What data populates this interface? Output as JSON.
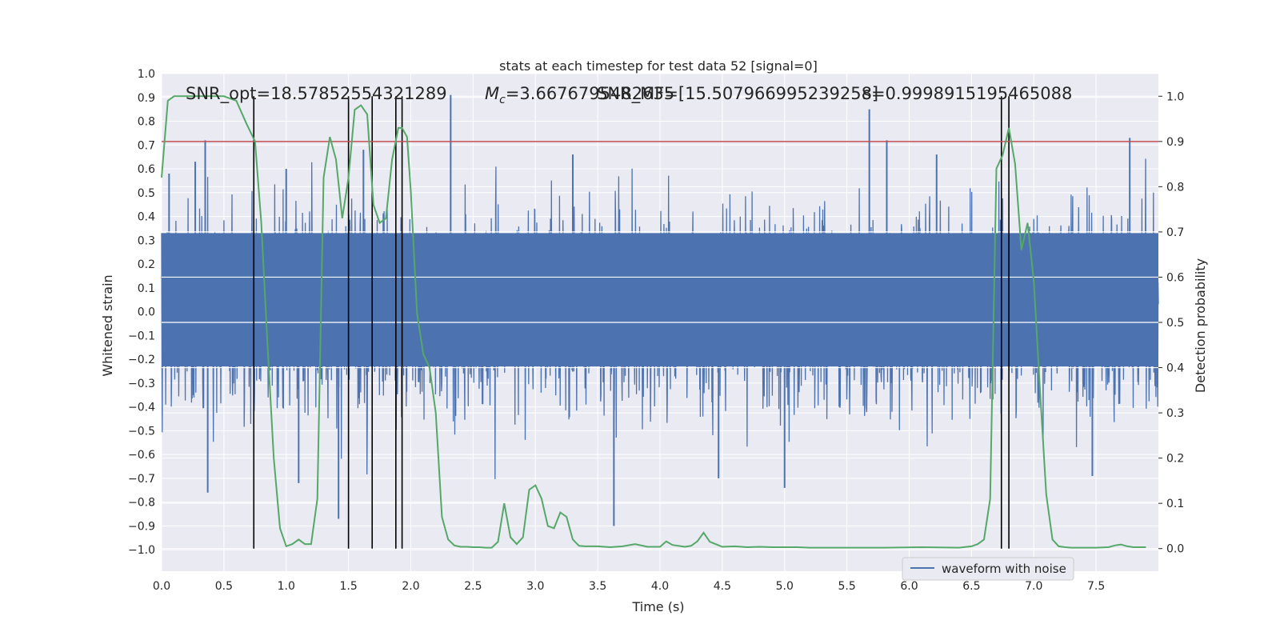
{
  "chart_data": {
    "type": "line",
    "title": "stats at each timestep for test data 52 [signal=0]",
    "annotations": {
      "snr_opt": "SNR_opt=18.57852554321289",
      "mc": "=3.6676795482635",
      "mc_symbol": "M",
      "mc_subscript": "c",
      "snr_mf": "SNR_MF=[15.507966995239258]",
      "s": "s=0.9998915195465088"
    },
    "xlabel": "Time (s)",
    "ylabel": "Whitened strain",
    "y2label": "Detection probability",
    "xlim": [
      0,
      8.0
    ],
    "ylim": [
      -1.09,
      1.0
    ],
    "y2lim": [
      -0.05,
      1.05
    ],
    "xticks": [
      "0.0",
      "0.5",
      "1.0",
      "1.5",
      "2.0",
      "2.5",
      "3.0",
      "3.5",
      "4.0",
      "4.5",
      "5.0",
      "5.5",
      "6.0",
      "6.5",
      "7.0",
      "7.5"
    ],
    "yticks": [
      "1.0",
      "0.9",
      "0.8",
      "0.7",
      "0.6",
      "0.5",
      "0.4",
      "0.3",
      "0.2",
      "0.1",
      "0.0",
      "-0.1",
      "-0.2",
      "-0.3",
      "-0.4",
      "-0.5",
      "-0.6",
      "-0.7",
      "-0.8",
      "-0.9",
      "-1.0"
    ],
    "y2ticks": [
      "0.0",
      "0.1",
      "0.2",
      "0.3",
      "0.4",
      "0.5",
      "0.6",
      "0.7",
      "0.8",
      "0.9",
      "1.0"
    ],
    "grid": true,
    "legend_position": "bottom-right",
    "series": [
      {
        "name": "waveform with noise",
        "axis": "left",
        "color": "#4c72b0",
        "kind": "dense noise",
        "core_range": [
          -0.23,
          0.33
        ],
        "envelope_range": [
          -0.45,
          0.45
        ],
        "peaks": [
          {
            "x": 0.35,
            "y": 0.72
          },
          {
            "x": 0.37,
            "y": -0.76
          },
          {
            "x": 0.27,
            "y": 0.63
          },
          {
            "x": 1.1,
            "y": -0.72
          },
          {
            "x": 1.42,
            "y": -0.87
          },
          {
            "x": 1.62,
            "y": 0.68
          },
          {
            "x": 2.32,
            "y": 0.91
          },
          {
            "x": 3.63,
            "y": -0.9
          },
          {
            "x": 3.3,
            "y": 0.66
          },
          {
            "x": 4.47,
            "y": -0.7
          },
          {
            "x": 5.0,
            "y": -0.74
          },
          {
            "x": 5.68,
            "y": 0.85
          },
          {
            "x": 5.82,
            "y": 0.72
          },
          {
            "x": 7.47,
            "y": -0.69
          },
          {
            "x": 7.77,
            "y": 0.73
          },
          {
            "x": 0.06,
            "y": 0.58
          },
          {
            "x": 1.0,
            "y": 0.6
          },
          {
            "x": 6.22,
            "y": 0.66
          }
        ]
      },
      {
        "name": "detection probability",
        "axis": "right",
        "color": "#55a868",
        "x": [
          0.0,
          0.05,
          0.1,
          0.15,
          0.2,
          0.3,
          0.4,
          0.5,
          0.6,
          0.68,
          0.75,
          0.8,
          0.85,
          0.9,
          0.95,
          1.0,
          1.05,
          1.1,
          1.15,
          1.2,
          1.25,
          1.3,
          1.35,
          1.4,
          1.45,
          1.5,
          1.55,
          1.6,
          1.65,
          1.7,
          1.75,
          1.8,
          1.85,
          1.9,
          1.93,
          1.97,
          2.0,
          2.05,
          2.1,
          2.15,
          2.2,
          2.25,
          2.3,
          2.35,
          2.4,
          2.45,
          2.5,
          2.55,
          2.6,
          2.65,
          2.7,
          2.75,
          2.8,
          2.85,
          2.9,
          2.95,
          3.0,
          3.05,
          3.1,
          3.15,
          3.2,
          3.25,
          3.3,
          3.35,
          3.4,
          3.5,
          3.6,
          3.7,
          3.8,
          3.9,
          4.0,
          4.05,
          4.1,
          4.2,
          4.25,
          4.3,
          4.35,
          4.4,
          4.5,
          4.6,
          4.7,
          4.8,
          4.9,
          5.0,
          5.1,
          5.2,
          5.5,
          5.8,
          6.1,
          6.4,
          6.5,
          6.55,
          6.6,
          6.65,
          6.7,
          6.75,
          6.8,
          6.85,
          6.9,
          6.95,
          7.0,
          7.05,
          7.1,
          7.15,
          7.2,
          7.25,
          7.3,
          7.4,
          7.5,
          7.6,
          7.65,
          7.7,
          7.75,
          7.8,
          7.85,
          7.9
        ],
        "values": [
          0.82,
          0.99,
          1.0,
          1.0,
          1.0,
          1.0,
          1.0,
          1.0,
          0.99,
          0.94,
          0.9,
          0.72,
          0.45,
          0.2,
          0.045,
          0.005,
          0.01,
          0.02,
          0.01,
          0.01,
          0.11,
          0.82,
          0.91,
          0.86,
          0.73,
          0.82,
          0.97,
          0.98,
          0.96,
          0.76,
          0.72,
          0.73,
          0.86,
          0.93,
          0.93,
          0.91,
          0.79,
          0.52,
          0.43,
          0.4,
          0.3,
          0.07,
          0.02,
          0.007,
          0.004,
          0.004,
          0.003,
          0.003,
          0.002,
          0.002,
          0.015,
          0.1,
          0.025,
          0.01,
          0.025,
          0.13,
          0.14,
          0.11,
          0.05,
          0.045,
          0.08,
          0.07,
          0.02,
          0.006,
          0.005,
          0.005,
          0.003,
          0.005,
          0.01,
          0.004,
          0.004,
          0.016,
          0.008,
          0.004,
          0.006,
          0.016,
          0.035,
          0.015,
          0.004,
          0.005,
          0.003,
          0.004,
          0.003,
          0.003,
          0.003,
          0.002,
          0.002,
          0.002,
          0.003,
          0.002,
          0.005,
          0.01,
          0.02,
          0.11,
          0.84,
          0.87,
          0.93,
          0.85,
          0.66,
          0.72,
          0.59,
          0.35,
          0.12,
          0.02,
          0.005,
          0.003,
          0.002,
          0.002,
          0.002,
          0.003,
          0.007,
          0.009,
          0.005,
          0.003,
          0.003,
          0.003
        ]
      }
    ],
    "threshold": {
      "axis": "right",
      "value": 0.9,
      "color": "#c44e52"
    },
    "vertical_markers": [
      0.74,
      1.5,
      1.69,
      1.88,
      1.93,
      6.74,
      6.8
    ]
  }
}
